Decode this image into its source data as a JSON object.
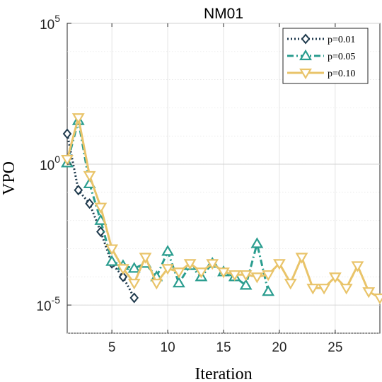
{
  "chart_data": {
    "type": "line",
    "title": "NM01",
    "xlabel": "Iteration",
    "ylabel": "VPO",
    "yscale": "log",
    "xlim": [
      1,
      29
    ],
    "ylim": [
      1e-06,
      100000
    ],
    "xticks": [
      5,
      10,
      15,
      20,
      25
    ],
    "yticks": [
      {
        "value": 1e-05,
        "base": "10",
        "exp": "-5"
      },
      {
        "value": 1,
        "base": "10",
        "exp": "0"
      },
      {
        "value": 100000,
        "base": "10",
        "exp": "5"
      }
    ],
    "grid": true,
    "legend_position": "top-right",
    "series": [
      {
        "name": "p=0.01",
        "color": "#1f3a4d",
        "dash": "dotted",
        "marker": "diamond",
        "x": [
          1,
          2,
          3,
          4,
          5,
          6,
          7
        ],
        "y": [
          12,
          0.12,
          0.04,
          0.004,
          0.0003,
          0.0001,
          1.8e-05
        ]
      },
      {
        "name": "p=0.05",
        "color": "#2a9d8f",
        "dash": "dashdot",
        "marker": "triangle-up",
        "x": [
          1,
          2,
          3,
          4,
          5,
          6,
          7,
          8,
          9,
          10,
          11,
          12,
          13,
          14,
          15,
          16,
          17,
          18,
          19
        ],
        "y": [
          1.1,
          35,
          0.2,
          0.01,
          0.00035,
          0.00025,
          0.0002,
          0.0003,
          0.0001,
          0.0008,
          6e-05,
          0.00025,
          0.0001,
          0.0003,
          0.00015,
          0.0001,
          5e-05,
          0.0015,
          3e-05
        ]
      },
      {
        "name": "p=0.10",
        "color": "#e9c46a",
        "dash": "solid",
        "marker": "triangle-down",
        "x": [
          1,
          2,
          3,
          4,
          5,
          6,
          7,
          8,
          9,
          10,
          11,
          12,
          13,
          14,
          15,
          16,
          17,
          18,
          19,
          20,
          21,
          22,
          23,
          24,
          25,
          26,
          27,
          28,
          29
        ],
        "y": [
          1.5,
          45,
          0.4,
          0.03,
          0.001,
          0.0002,
          6e-05,
          0.0005,
          6e-05,
          0.0002,
          0.00015,
          0.0003,
          0.00015,
          0.0003,
          0.00015,
          0.00012,
          0.00012,
          0.0001,
          0.00012,
          0.0003,
          6e-05,
          0.0005,
          4e-05,
          4e-05,
          0.0001,
          4e-05,
          0.00025,
          3e-05,
          1.8e-05
        ]
      }
    ]
  }
}
